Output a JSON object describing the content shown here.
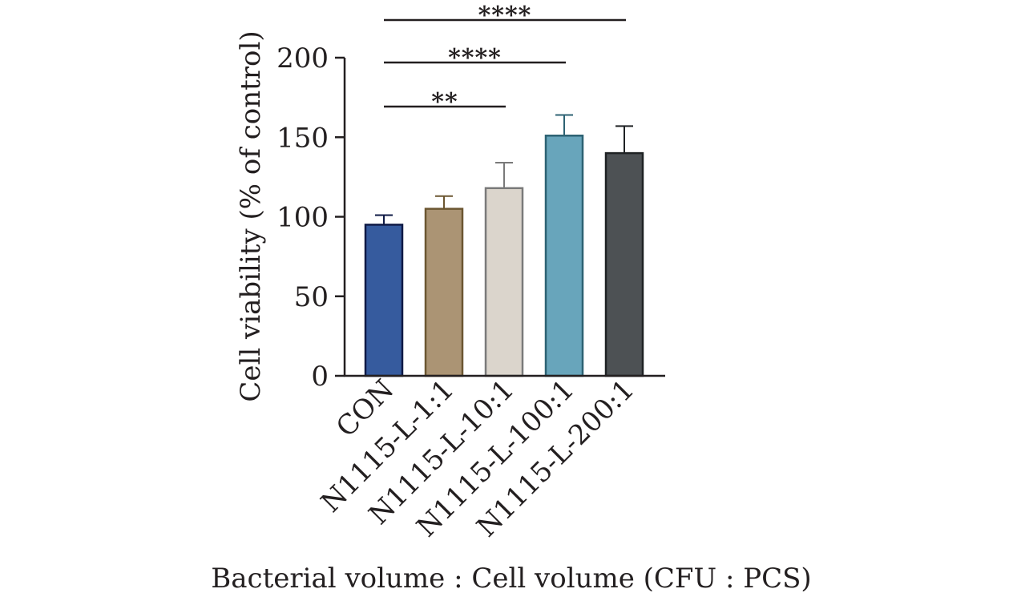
{
  "chart_data": {
    "type": "bar",
    "title": "",
    "xlabel": "Bacterial volume : Cell volume (CFU : PCS)",
    "ylabel": "Cell viability (% of control)",
    "ylim": [
      0,
      200
    ],
    "yticks": [
      0,
      50,
      100,
      150,
      200
    ],
    "grid": false,
    "categories": [
      "CON",
      "N1115-L-1:1",
      "N1115-L-10:1",
      "N1115-L-100:1",
      "N1115-L-200:1"
    ],
    "values": [
      95,
      105,
      118,
      151,
      140
    ],
    "errors": [
      6,
      8,
      16,
      13,
      17
    ],
    "colors": [
      "#365b9e",
      "#ab9474",
      "#dbd5cc",
      "#68a5bb",
      "#4d5154"
    ],
    "edge_colors": [
      "#0f1a45",
      "#6b5631",
      "#7a7a7a",
      "#2d6273",
      "#1f2224"
    ],
    "significance": [
      {
        "from": 0,
        "to": 4,
        "label": "****"
      },
      {
        "from": 0,
        "to": 3,
        "label": "****"
      },
      {
        "from": 0,
        "to": 2,
        "label": "**"
      }
    ]
  }
}
